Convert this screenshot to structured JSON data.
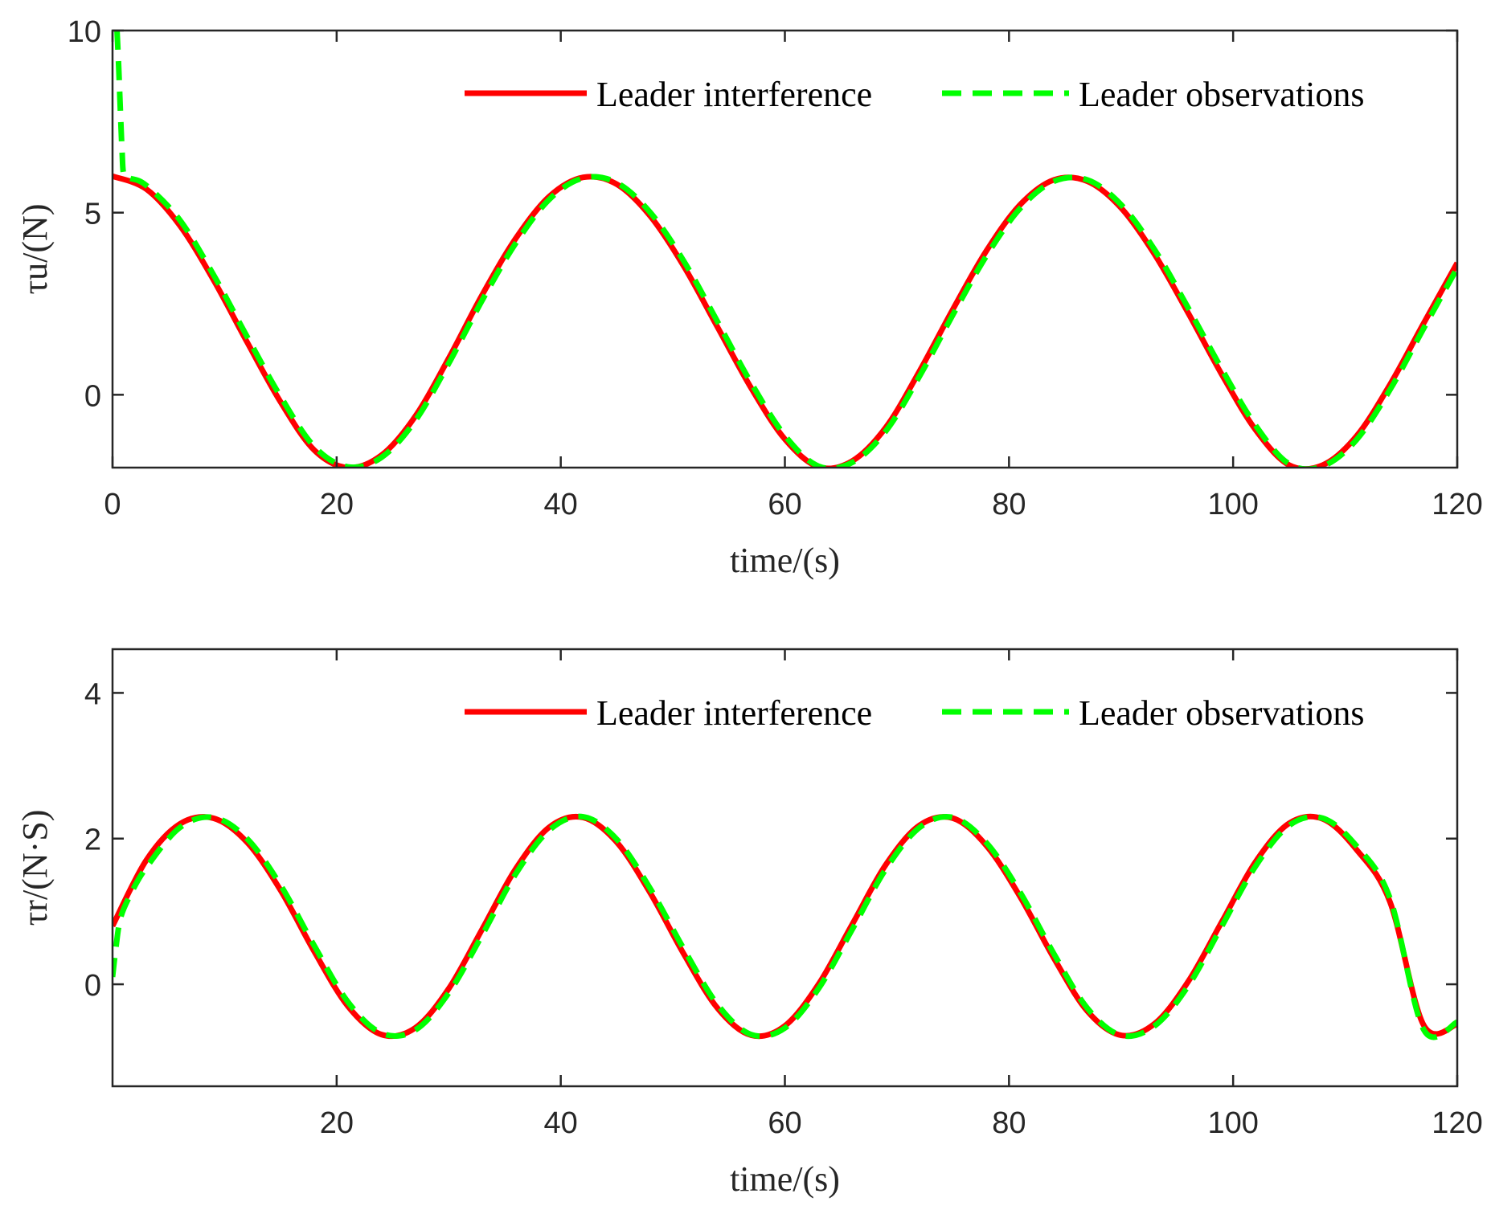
{
  "chart_data": [
    {
      "type": "line",
      "xlabel": "time/(s)",
      "ylabel": "τu/(N)",
      "xlim": [
        0,
        120
      ],
      "ylim": [
        -2,
        10
      ],
      "xticks": [
        "0",
        "20",
        "40",
        "60",
        "80",
        "100",
        "120"
      ],
      "yticks": [
        "0",
        "5",
        "10"
      ],
      "grid": false,
      "legend_position": "top-right",
      "series": [
        {
          "name": "Leader interference",
          "color": "#ff0000",
          "style": "solid",
          "x": [
            0,
            3,
            6,
            9,
            12,
            15,
            18,
            21,
            24,
            27,
            30,
            33,
            36,
            39,
            42,
            45,
            48,
            51,
            54,
            57,
            60,
            63,
            66,
            69,
            72,
            75,
            78,
            81,
            84,
            87,
            90,
            93,
            96,
            99,
            102,
            105,
            108,
            111,
            114,
            117,
            120
          ],
          "y": [
            6.0,
            5.65,
            4.65,
            3.16,
            1.45,
            -0.2,
            -1.52,
            -2.0,
            -1.66,
            -0.6,
            1.0,
            2.75,
            4.3,
            5.45,
            5.97,
            5.78,
            4.9,
            3.52,
            1.85,
            0.18,
            -1.22,
            -1.98,
            -1.82,
            -0.9,
            0.64,
            2.35,
            3.96,
            5.22,
            5.9,
            5.86,
            5.13,
            3.85,
            2.24,
            0.55,
            -0.96,
            -1.93,
            -1.93,
            -1.14,
            0.28,
            1.96,
            3.62
          ]
        },
        {
          "name": "Leader observations",
          "color": "#00ff00",
          "style": "dashed",
          "x": [
            0.4,
            0.55,
            0.7,
            0.85,
            1.0,
            1.5,
            3,
            6,
            9,
            12,
            15,
            18,
            21,
            24,
            27,
            30,
            33,
            36,
            39,
            42,
            45,
            48,
            51,
            54,
            57,
            60,
            63,
            66,
            69,
            72,
            75,
            78,
            81,
            84,
            87,
            90,
            93,
            96,
            99,
            102,
            105,
            108,
            111,
            114,
            117,
            120
          ],
          "y": [
            10.0,
            9.0,
            7.8,
            6.7,
            6.05,
            5.95,
            5.75,
            4.8,
            3.3,
            1.6,
            -0.05,
            -1.42,
            -1.98,
            -1.72,
            -0.72,
            0.86,
            2.6,
            4.17,
            5.37,
            5.95,
            5.82,
            5.0,
            3.66,
            2.0,
            0.32,
            -1.12,
            -1.96,
            -1.86,
            -1.0,
            0.5,
            2.2,
            3.82,
            5.12,
            5.86,
            5.9,
            5.22,
            3.98,
            2.38,
            0.7,
            -0.84,
            -1.9,
            -1.96,
            -1.24,
            0.14,
            1.82,
            3.48
          ]
        }
      ]
    },
    {
      "type": "line",
      "xlabel": "time/(s)",
      "ylabel": "τr/(N·S)",
      "xlim": [
        0,
        120
      ],
      "ylim": [
        -1.4,
        4.6
      ],
      "xticks": [
        "20",
        "40",
        "60",
        "80",
        "100",
        "120"
      ],
      "yticks": [
        "0",
        "2",
        "4"
      ],
      "grid": false,
      "legend_position": "top-right",
      "series": [
        {
          "name": "Leader interference",
          "color": "#ff0000",
          "style": "solid",
          "x": [
            0,
            3,
            6,
            9,
            12,
            15,
            18,
            21,
            24,
            27,
            30,
            33,
            36,
            39,
            42,
            45,
            48,
            51,
            54,
            57,
            60,
            63,
            66,
            69,
            72,
            75,
            78,
            81,
            84,
            87,
            90,
            93,
            96,
            99,
            102,
            105,
            108,
            111,
            114,
            117,
            120
          ],
          "y": [
            0.8,
            1.7,
            2.2,
            2.28,
            1.95,
            1.29,
            0.45,
            -0.3,
            -0.69,
            -0.6,
            -0.06,
            0.76,
            1.59,
            2.16,
            2.29,
            1.95,
            1.25,
            0.41,
            -0.33,
            -0.7,
            -0.57,
            0.0,
            0.82,
            1.64,
            2.18,
            2.28,
            1.9,
            1.2,
            0.36,
            -0.37,
            -0.7,
            -0.54,
            0.04,
            0.86,
            1.68,
            2.21,
            2.27,
            1.85,
            1.13,
            -0.56,
            -0.55
          ]
        },
        {
          "name": "Leader observations",
          "color": "#00ff00",
          "style": "dashed",
          "x": [
            0,
            0.3,
            0.7,
            1.5,
            3,
            6,
            9,
            12,
            15,
            18,
            21,
            24,
            27,
            30,
            33,
            36,
            39,
            42,
            45,
            48,
            51,
            54,
            57,
            60,
            63,
            66,
            69,
            72,
            75,
            78,
            81,
            84,
            87,
            90,
            93,
            96,
            99,
            102,
            105,
            108,
            111,
            114,
            117,
            120
          ],
          "y": [
            0.1,
            0.5,
            0.9,
            1.2,
            1.6,
            2.15,
            2.29,
            2.0,
            1.36,
            0.53,
            -0.24,
            -0.67,
            -0.63,
            -0.12,
            0.68,
            1.52,
            2.12,
            2.3,
            1.99,
            1.31,
            0.48,
            -0.28,
            -0.69,
            -0.6,
            -0.06,
            0.75,
            1.58,
            2.15,
            2.29,
            1.94,
            1.26,
            0.42,
            -0.33,
            -0.7,
            -0.57,
            -0.02,
            0.8,
            1.62,
            2.18,
            2.28,
            1.9,
            1.18,
            -0.62,
            -0.52
          ]
        }
      ]
    }
  ]
}
